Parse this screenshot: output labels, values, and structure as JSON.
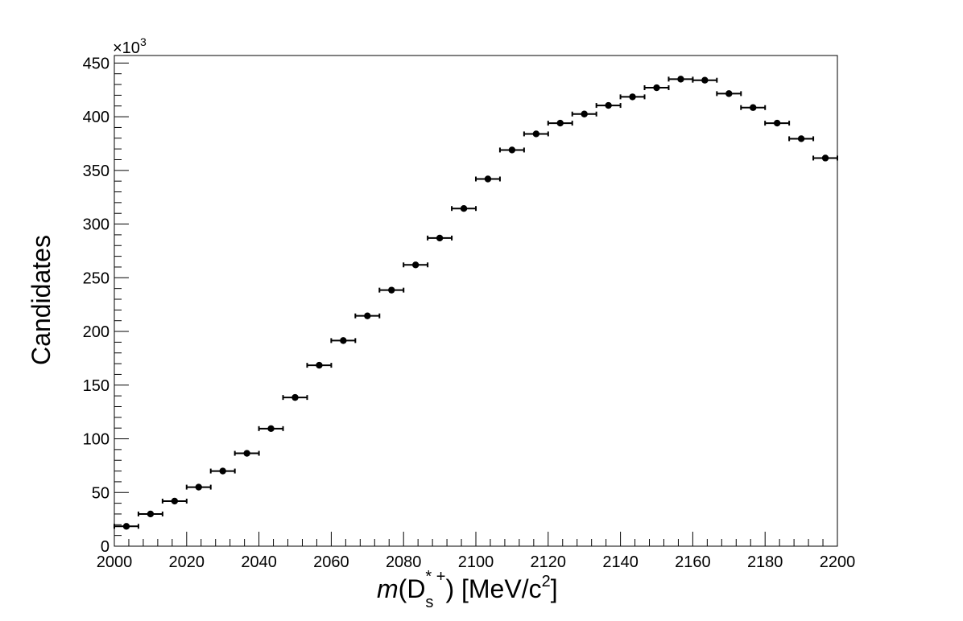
{
  "chart_data": {
    "type": "scatter",
    "title": "",
    "xlabel_parts": {
      "m": "m",
      "open": "(D",
      "sub": "s",
      "sup": "* +",
      "close": ") [MeV/c",
      "sup2": "2",
      "end": "]"
    },
    "ylabel": "Candidates",
    "y_multiplier_label": "×10",
    "y_multiplier_exp": "3",
    "xlim": [
      2000,
      2200
    ],
    "ylim": [
      0,
      457
    ],
    "x_ticks": [
      2000,
      2020,
      2040,
      2060,
      2080,
      2100,
      2120,
      2140,
      2160,
      2180,
      2200
    ],
    "y_ticks": [
      0,
      50,
      100,
      150,
      200,
      250,
      300,
      350,
      400,
      450
    ],
    "bin_width": 6.67,
    "x": [
      2003.33,
      2010.0,
      2016.67,
      2023.33,
      2030.0,
      2036.67,
      2043.33,
      2050.0,
      2056.67,
      2063.33,
      2070.0,
      2076.67,
      2083.33,
      2090.0,
      2096.67,
      2103.33,
      2110.0,
      2116.67,
      2123.33,
      2130.0,
      2136.67,
      2143.33,
      2150.0,
      2156.67,
      2163.33,
      2170.0,
      2176.67,
      2183.33,
      2190.0,
      2196.67
    ],
    "y": [
      18.5,
      30,
      42,
      55,
      70,
      86.5,
      109.5,
      138.5,
      168.5,
      191.5,
      214.5,
      238.5,
      262,
      287,
      314.5,
      342,
      369,
      384,
      394,
      402.5,
      410.5,
      418.5,
      427,
      435,
      434,
      421.5,
      408.5,
      394,
      379.5,
      361.5
    ],
    "grid": false,
    "marker_color": "#000000"
  }
}
